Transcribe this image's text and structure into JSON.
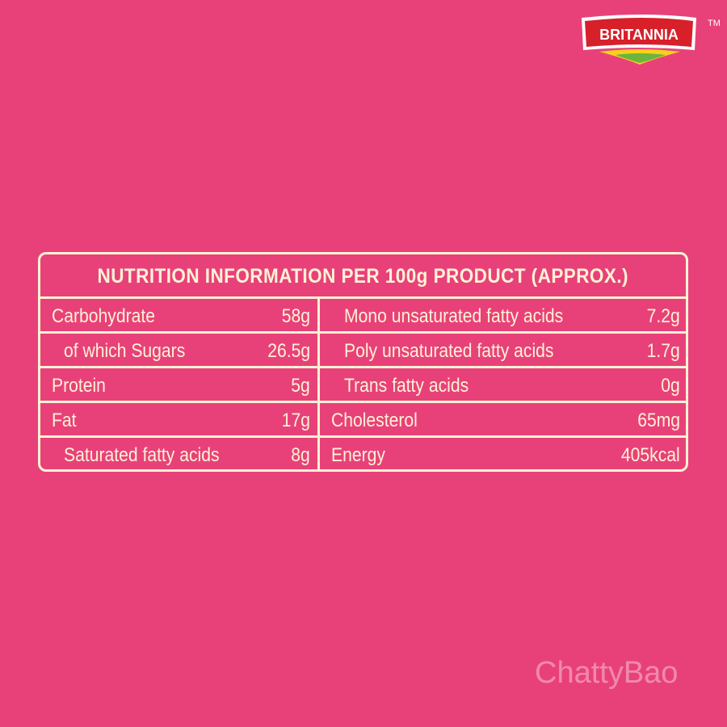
{
  "brand": {
    "name": "BRITANNIA",
    "trademark": "TM"
  },
  "table": {
    "title": "NUTRITION INFORMATION PER 100g PRODUCT (APPROX.)",
    "rows": [
      [
        "Carbohydrate",
        "58g",
        "Mono unsaturated fatty acids",
        "7.2g"
      ],
      [
        "of which Sugars",
        "26.5g",
        "Poly unsaturated fatty acids",
        "1.7g"
      ],
      [
        "Protein",
        "5g",
        "Trans fatty acids",
        "0g"
      ],
      [
        "Fat",
        "17g",
        "Cholesterol",
        "65mg"
      ],
      [
        "Saturated fatty acids",
        "8g",
        "Energy",
        "405kcal"
      ]
    ]
  },
  "watermark": "ChattyBao"
}
